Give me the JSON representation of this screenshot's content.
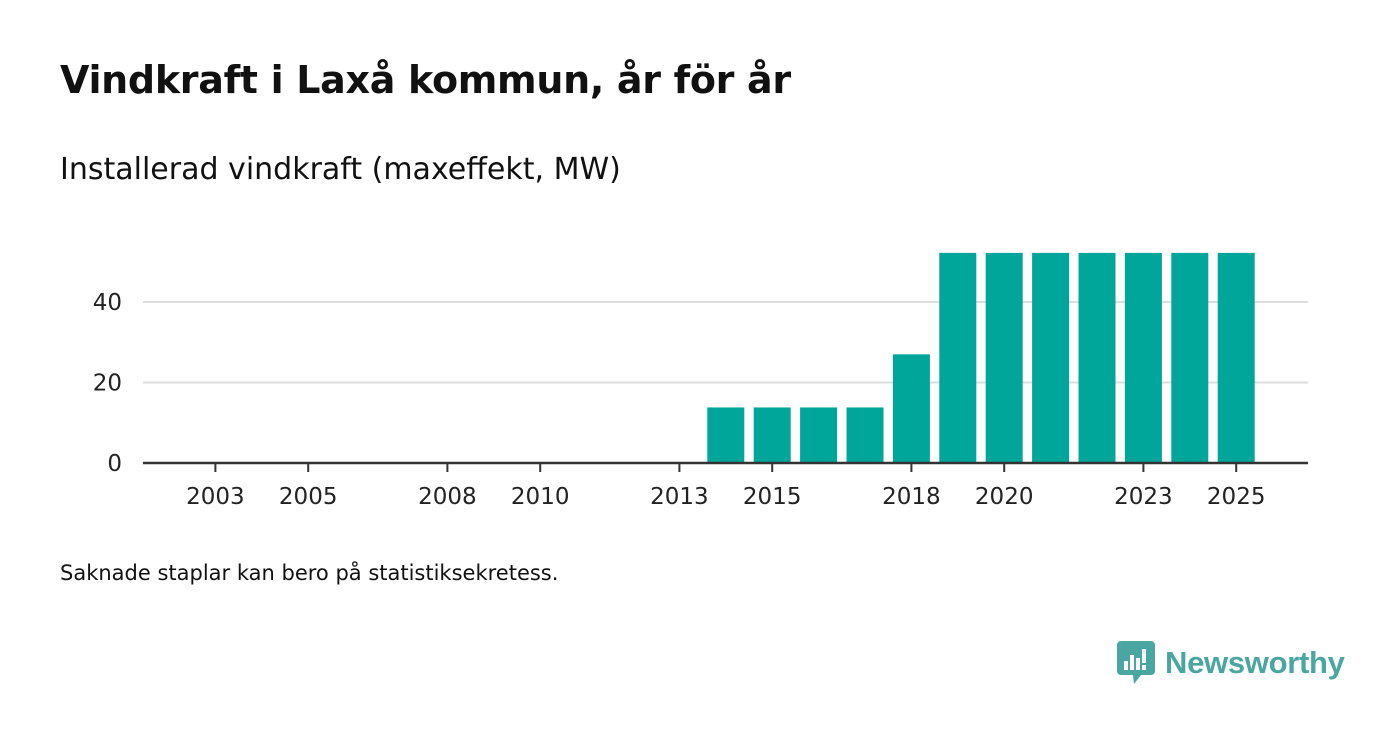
{
  "title": "Vindkraft i Laxå kommun, år för år",
  "subtitle": "Installerad vindkraft (maxeffekt, MW)",
  "footnote": "Saknade staplar kan bero på statistiksekretess.",
  "brand": {
    "name": "Newsworthy",
    "color": "#4aa6a0",
    "icon": "bar-chart-speech-bubble-icon"
  },
  "colors": {
    "bar": "#00a699",
    "grid": "#dddddd",
    "axis": "#333333"
  },
  "chart_data": {
    "type": "bar",
    "title": "Vindkraft i Laxå kommun, år för år",
    "subtitle": "Installerad vindkraft (maxeffekt, MW)",
    "xlabel": "",
    "ylabel": "Installerad vindkraft (maxeffekt, MW)",
    "categories": [
      2002,
      2003,
      2004,
      2005,
      2006,
      2007,
      2008,
      2009,
      2010,
      2011,
      2012,
      2013,
      2014,
      2015,
      2016,
      2017,
      2018,
      2019,
      2020,
      2021,
      2022,
      2023,
      2024,
      2025
    ],
    "values": [
      0,
      0,
      0,
      0,
      0,
      0,
      0,
      0,
      0,
      0,
      0,
      0,
      13.8,
      13.8,
      13.8,
      13.8,
      27,
      52.2,
      52.2,
      52.2,
      52.2,
      52.2,
      52.2,
      52.2
    ],
    "x_tick_labels": [
      "2003",
      "2005",
      "2008",
      "2010",
      "2013",
      "2015",
      "2018",
      "2020",
      "2023",
      "2025"
    ],
    "y_ticks": [
      0,
      20,
      40
    ],
    "ylim": [
      0,
      54
    ],
    "grid": true,
    "legend": "none"
  }
}
